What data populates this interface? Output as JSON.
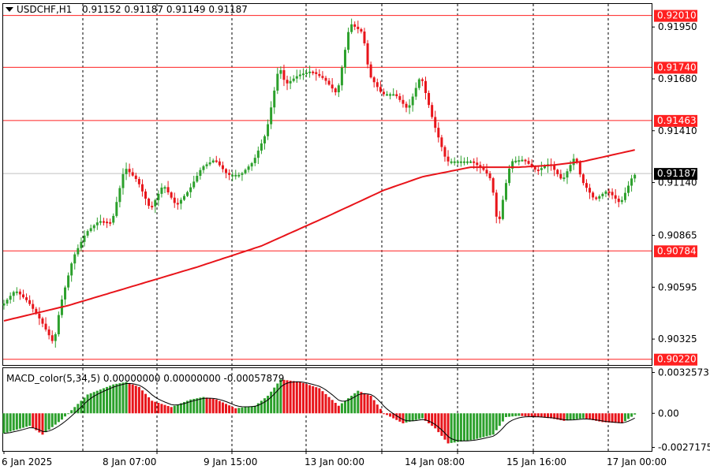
{
  "header": {
    "symbol": "USDCHF,H1",
    "ohlc": "0.91152 0.91187 0.91149 0.91187"
  },
  "indicator": {
    "label": "MACD_color(5,34,5) 0.00000000 0.00000000 -0.00057879"
  },
  "colors": {
    "bull": "#2ca02c",
    "bear": "#e8141a",
    "ma": "#e8141a",
    "hline": "#ff2020",
    "grid": "#000000",
    "signal": "#000000"
  },
  "chart_data": [
    {
      "type": "candlestick",
      "title": "USDCHF,H1",
      "ylim": [
        0.9019,
        0.9207
      ],
      "price_ticks": [
        "0.91950",
        "0.91680",
        "0.91410",
        "0.91140",
        "0.90865",
        "0.90595",
        "0.90325"
      ],
      "horizontal_lines": [
        "0.92010",
        "0.91740",
        "0.91463",
        "0.90784",
        "0.90220"
      ],
      "current_price": "0.91187",
      "time_labels": [
        "6 Jan 2025",
        "8 Jan 07:00",
        "9 Jan 15:00",
        "13 Jan 00:00",
        "14 Jan 08:00",
        "15 Jan 16:00",
        "17 Jan 00:00"
      ],
      "grid": "vertical dotted",
      "price_path": [
        [
          0,
          0.905
        ],
        [
          4,
          0.9058
        ],
        [
          8,
          0.9052
        ],
        [
          12,
          0.9042
        ],
        [
          16,
          0.903
        ],
        [
          18,
          0.905
        ],
        [
          22,
          0.9075
        ],
        [
          26,
          0.9088
        ],
        [
          30,
          0.9094
        ],
        [
          34,
          0.9093
        ],
        [
          38,
          0.9122
        ],
        [
          42,
          0.9115
        ],
        [
          46,
          0.91
        ],
        [
          50,
          0.9113
        ],
        [
          54,
          0.9102
        ],
        [
          58,
          0.911
        ],
        [
          62,
          0.9122
        ],
        [
          66,
          0.9126
        ],
        [
          70,
          0.9118
        ],
        [
          74,
          0.9118
        ],
        [
          78,
          0.9125
        ],
        [
          82,
          0.914
        ],
        [
          86,
          0.9175
        ],
        [
          88,
          0.9165
        ],
        [
          92,
          0.917
        ],
        [
          96,
          0.9172
        ],
        [
          100,
          0.9168
        ],
        [
          104,
          0.916
        ],
        [
          108,
          0.9197
        ],
        [
          112,
          0.9192
        ],
        [
          114,
          0.917
        ],
        [
          118,
          0.916
        ],
        [
          122,
          0.916
        ],
        [
          126,
          0.9152
        ],
        [
          130,
          0.917
        ],
        [
          134,
          0.9145
        ],
        [
          138,
          0.9125
        ],
        [
          142,
          0.9125
        ],
        [
          146,
          0.9125
        ],
        [
          150,
          0.912
        ],
        [
          152,
          0.9115
        ],
        [
          154,
          0.909
        ],
        [
          156,
          0.911
        ],
        [
          158,
          0.9125
        ],
        [
          162,
          0.9126
        ],
        [
          166,
          0.912
        ],
        [
          170,
          0.9124
        ],
        [
          174,
          0.9115
        ],
        [
          178,
          0.9128
        ],
        [
          180,
          0.9115
        ],
        [
          184,
          0.9105
        ],
        [
          188,
          0.911
        ],
        [
          192,
          0.9103
        ],
        [
          196,
          0.9118
        ]
      ],
      "ma_path": [
        [
          0,
          0.9042
        ],
        [
          20,
          0.905
        ],
        [
          40,
          0.906
        ],
        [
          60,
          0.907
        ],
        [
          80,
          0.9081
        ],
        [
          100,
          0.9096
        ],
        [
          118,
          0.911
        ],
        [
          130,
          0.9117
        ],
        [
          145,
          0.9122
        ],
        [
          160,
          0.9122
        ],
        [
          170,
          0.9123
        ],
        [
          180,
          0.9125
        ],
        [
          196,
          0.9131
        ]
      ]
    },
    {
      "type": "bar",
      "title": "MACD_color(5,34,5)",
      "ylim": [
        -0.003,
        0.0036
      ],
      "y_ticks": [
        "0.0032573",
        "0.00",
        "-0.0027175"
      ],
      "histogram_path": [
        [
          0,
          -0.0016
        ],
        [
          8,
          -0.001
        ],
        [
          12,
          -0.0017
        ],
        [
          18,
          -0.0005
        ],
        [
          22,
          0.0005
        ],
        [
          26,
          0.0015
        ],
        [
          30,
          0.0019
        ],
        [
          34,
          0.0023
        ],
        [
          38,
          0.0025
        ],
        [
          42,
          0.0021
        ],
        [
          46,
          0.001
        ],
        [
          52,
          0.0005
        ],
        [
          58,
          0.0011
        ],
        [
          62,
          0.0013
        ],
        [
          66,
          0.0011
        ],
        [
          72,
          0.0004
        ],
        [
          78,
          0.0006
        ],
        [
          82,
          0.0014
        ],
        [
          86,
          0.0027
        ],
        [
          92,
          0.0025
        ],
        [
          98,
          0.002
        ],
        [
          104,
          0.0006
        ],
        [
          110,
          0.0018
        ],
        [
          114,
          0.0014
        ],
        [
          118,
          0.0
        ],
        [
          124,
          -0.0008
        ],
        [
          130,
          -0.0004
        ],
        [
          134,
          -0.0012
        ],
        [
          138,
          -0.0024
        ],
        [
          146,
          -0.0021
        ],
        [
          152,
          -0.0017
        ],
        [
          156,
          -0.0003
        ],
        [
          160,
          -0.0002
        ],
        [
          166,
          -0.0003
        ],
        [
          170,
          -0.0004
        ],
        [
          174,
          -0.0006
        ],
        [
          180,
          -0.0004
        ],
        [
          186,
          -0.0007
        ],
        [
          192,
          -0.0008
        ],
        [
          196,
          -0.0001
        ]
      ]
    }
  ]
}
